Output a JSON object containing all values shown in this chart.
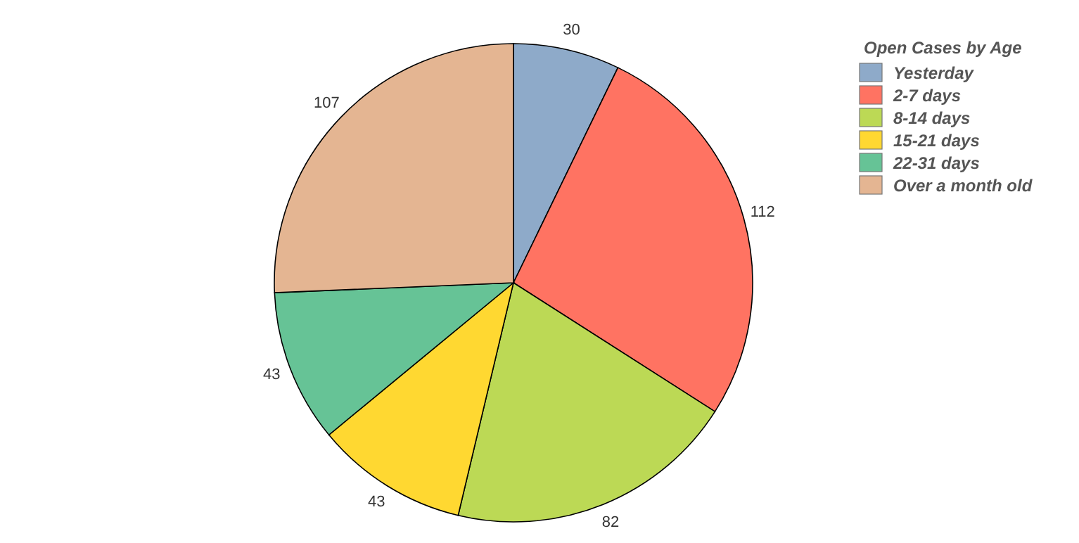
{
  "chart_data": {
    "type": "pie",
    "legend_title": "Open Cases by Age",
    "categories": [
      "Yesterday",
      "2-7 days",
      "8-14 days",
      "15-21 days",
      "22-31 days",
      "Over a month old"
    ],
    "values": [
      30,
      112,
      82,
      43,
      43,
      107
    ],
    "colors": [
      "#8eaac9",
      "#ff7362",
      "#bcd955",
      "#ffd831",
      "#66c396",
      "#e4b592"
    ],
    "data_labels": true,
    "legend": "top right"
  }
}
